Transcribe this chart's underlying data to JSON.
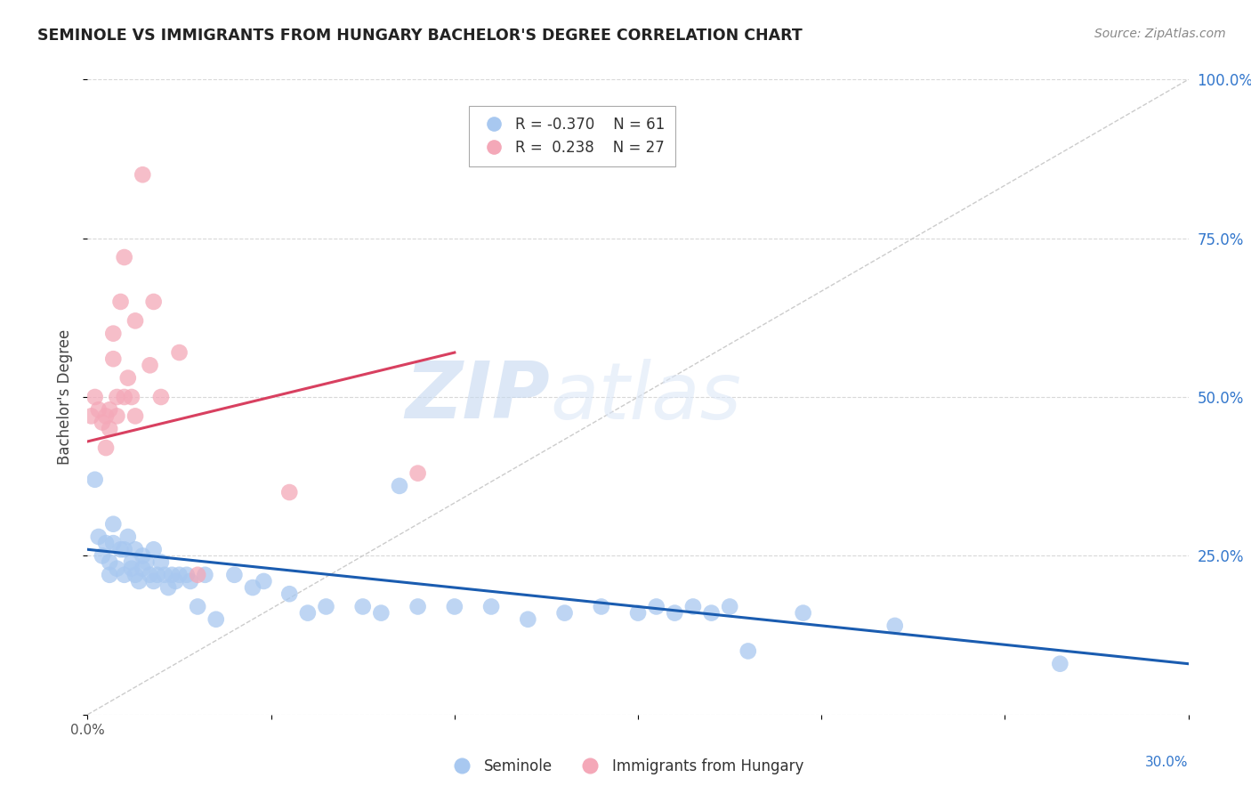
{
  "title": "SEMINOLE VS IMMIGRANTS FROM HUNGARY BACHELOR'S DEGREE CORRELATION CHART",
  "source": "Source: ZipAtlas.com",
  "ylabel": "Bachelor's Degree",
  "xlim": [
    0,
    0.3
  ],
  "ylim": [
    0,
    1.0
  ],
  "xticks": [
    0.0,
    0.05,
    0.1,
    0.15,
    0.2,
    0.25,
    0.3
  ],
  "yticks": [
    0.0,
    0.25,
    0.5,
    0.75,
    1.0
  ],
  "legend_blue_r": "R = -0.370",
  "legend_blue_n": "N = 61",
  "legend_pink_r": "R =  0.238",
  "legend_pink_n": "N = 27",
  "blue_color": "#a8c8f0",
  "pink_color": "#f4a8b8",
  "blue_line_color": "#1a5cb0",
  "pink_line_color": "#d84060",
  "ref_line_color": "#cccccc",
  "watermark_zip": "ZIP",
  "watermark_atlas": "atlas",
  "grid_color": "#d8d8d8",
  "blue_scatter_x": [
    0.002,
    0.003,
    0.004,
    0.005,
    0.006,
    0.006,
    0.007,
    0.007,
    0.008,
    0.009,
    0.01,
    0.01,
    0.011,
    0.012,
    0.012,
    0.013,
    0.013,
    0.014,
    0.015,
    0.015,
    0.016,
    0.017,
    0.018,
    0.018,
    0.019,
    0.02,
    0.021,
    0.022,
    0.023,
    0.024,
    0.025,
    0.027,
    0.028,
    0.03,
    0.032,
    0.035,
    0.04,
    0.045,
    0.048,
    0.055,
    0.06,
    0.065,
    0.075,
    0.08,
    0.085,
    0.09,
    0.1,
    0.11,
    0.12,
    0.13,
    0.14,
    0.15,
    0.155,
    0.16,
    0.165,
    0.17,
    0.175,
    0.18,
    0.195,
    0.22,
    0.265
  ],
  "blue_scatter_y": [
    0.37,
    0.28,
    0.25,
    0.27,
    0.24,
    0.22,
    0.27,
    0.3,
    0.23,
    0.26,
    0.26,
    0.22,
    0.28,
    0.23,
    0.24,
    0.22,
    0.26,
    0.21,
    0.23,
    0.25,
    0.24,
    0.22,
    0.21,
    0.26,
    0.22,
    0.24,
    0.22,
    0.2,
    0.22,
    0.21,
    0.22,
    0.22,
    0.21,
    0.17,
    0.22,
    0.15,
    0.22,
    0.2,
    0.21,
    0.19,
    0.16,
    0.17,
    0.17,
    0.16,
    0.36,
    0.17,
    0.17,
    0.17,
    0.15,
    0.16,
    0.17,
    0.16,
    0.17,
    0.16,
    0.17,
    0.16,
    0.17,
    0.1,
    0.16,
    0.14,
    0.08
  ],
  "pink_scatter_x": [
    0.001,
    0.002,
    0.003,
    0.004,
    0.005,
    0.005,
    0.006,
    0.006,
    0.007,
    0.007,
    0.008,
    0.008,
    0.009,
    0.01,
    0.01,
    0.011,
    0.012,
    0.013,
    0.013,
    0.015,
    0.017,
    0.018,
    0.02,
    0.025,
    0.03,
    0.055,
    0.09
  ],
  "pink_scatter_y": [
    0.47,
    0.5,
    0.48,
    0.46,
    0.47,
    0.42,
    0.48,
    0.45,
    0.56,
    0.6,
    0.47,
    0.5,
    0.65,
    0.72,
    0.5,
    0.53,
    0.5,
    0.62,
    0.47,
    0.85,
    0.55,
    0.65,
    0.5,
    0.57,
    0.22,
    0.35,
    0.38
  ],
  "blue_trend_x": [
    0.0,
    0.3
  ],
  "blue_trend_y": [
    0.26,
    0.08
  ],
  "pink_trend_x": [
    0.0,
    0.1
  ],
  "pink_trend_y": [
    0.43,
    0.57
  ],
  "ref_line_x": [
    0.0,
    0.3
  ],
  "ref_line_y": [
    0.0,
    1.0
  ]
}
